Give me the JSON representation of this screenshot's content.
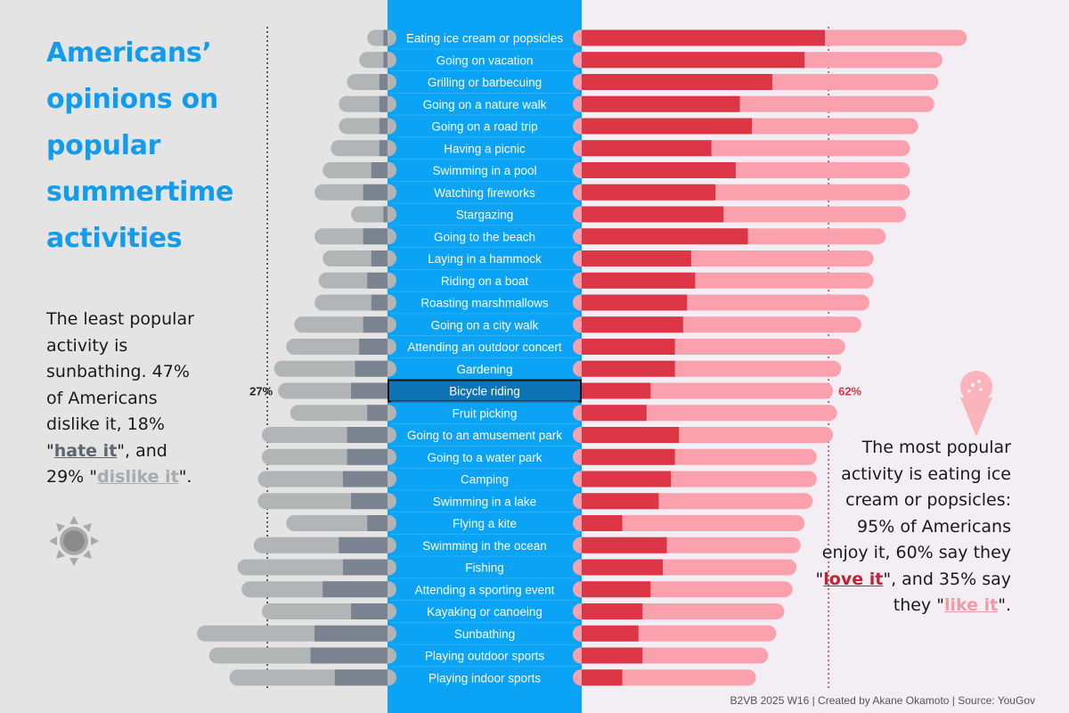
{
  "title": "Americans’ opinions on popular summertime activities",
  "left_note": {
    "before": "The least popular activity is sunbathing. 47% of Americans dislike it, 18% \"",
    "hate": "hate it",
    "middle": "\", and 29% \"",
    "dislike": "dislike it",
    "after": "\"."
  },
  "right_note": {
    "before": "The most popular activity is eating ice cream or popsicles: 95% of Americans enjoy it, 60% say they \"",
    "love": "love it",
    "middle": "\", and 35% say they \"",
    "like": "like it",
    "after": "\"."
  },
  "footer": "B2VB 2025 W16 | Created by Akane Okamoto | Source: YouGov",
  "colors": {
    "hate": "#7b8290",
    "dislike": "#b2b5b6",
    "love": "#dc3545",
    "like": "#fba1ad",
    "blue": "#0aa3f5",
    "highlight": "#0f74b5",
    "title": "#129ceb"
  },
  "chart_data": {
    "type": "bar",
    "orientation": "horizontal-diverging",
    "units": "% of Americans",
    "highlight": {
      "category": "Bicycle riding",
      "left_label": "27%",
      "right_label": "62%"
    },
    "reference_lines": {
      "dislike_total": 27,
      "enjoy_total": 62
    },
    "categories": [
      "Eating ice cream or popsicles",
      "Going on vacation",
      "Grilling or barbecuing",
      "Going on a nature walk",
      "Going on a road trip",
      "Having a picnic",
      "Swimming in a pool",
      "Watching fireworks",
      "Stargazing",
      "Going to the beach",
      "Laying in a hammock",
      "Riding on a boat",
      "Roasting marshmallows",
      "Going on a city walk",
      "Attending an outdoor concert",
      "Gardening",
      "Bicycle riding",
      "Fruit picking",
      "Going to an amusement park",
      "Going to a water park",
      "Camping",
      "Swimming in a lake",
      "Flying a kite",
      "Swimming in the ocean",
      "Fishing",
      "Attending a sporting event",
      "Kayaking or canoeing",
      "Sunbathing",
      "Playing outdoor sports",
      "Playing indoor sports"
    ],
    "series": [
      {
        "name": "love it",
        "values": [
          60,
          55,
          47,
          39,
          42,
          32,
          38,
          33,
          35,
          41,
          27,
          28,
          26,
          25,
          23,
          23,
          17,
          16,
          24,
          23,
          22,
          19,
          10,
          21,
          20,
          17,
          15,
          14,
          15,
          10
        ]
      },
      {
        "name": "like it",
        "values": [
          35,
          34,
          41,
          48,
          41,
          49,
          43,
          48,
          45,
          34,
          45,
          44,
          45,
          44,
          42,
          41,
          45,
          47,
          38,
          35,
          36,
          38,
          45,
          33,
          33,
          35,
          35,
          34,
          31,
          33
        ]
      },
      {
        "name": "dislike it",
        "values": [
          4,
          6,
          8,
          10,
          10,
          12,
          12,
          12,
          8,
          12,
          12,
          12,
          14,
          17,
          18,
          20,
          18,
          19,
          21,
          21,
          21,
          23,
          20,
          21,
          26,
          20,
          22,
          29,
          25,
          26
        ]
      },
      {
        "name": "hate it",
        "values": [
          1,
          1,
          2,
          2,
          2,
          2,
          4,
          6,
          1,
          6,
          4,
          5,
          4,
          6,
          7,
          8,
          9,
          5,
          10,
          10,
          11,
          9,
          5,
          12,
          11,
          16,
          9,
          18,
          19,
          13
        ]
      }
    ]
  }
}
